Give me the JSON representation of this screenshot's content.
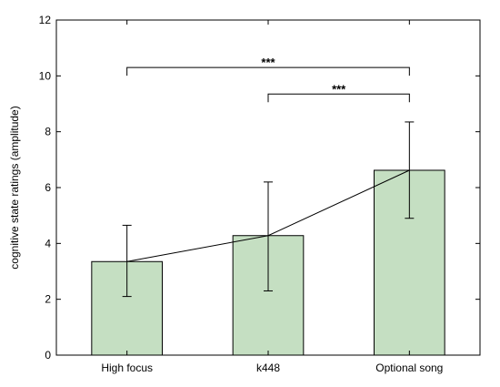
{
  "chart_data": {
    "type": "bar",
    "title": "",
    "xlabel": "",
    "ylabel": "cognitive state ratings (amplitude)",
    "categories": [
      "High focus",
      "k448",
      "Optional song"
    ],
    "values": [
      3.35,
      4.28,
      6.62
    ],
    "error_bars": [
      {
        "low": 2.1,
        "high": 4.65
      },
      {
        "low": 2.3,
        "high": 6.2
      },
      {
        "low": 4.9,
        "high": 8.35
      }
    ],
    "trend_line": true,
    "ylim": [
      0,
      12
    ],
    "yticks": [
      "0",
      "2",
      "4",
      "6",
      "8",
      "10",
      "12"
    ],
    "grid": false,
    "bar_color": "#c5dfc2",
    "bar_edge_color": "#000000",
    "significance": [
      {
        "from": 0,
        "to": 2,
        "level": 10.3,
        "label": "***"
      },
      {
        "from": 1,
        "to": 2,
        "level": 9.35,
        "label": "***"
      }
    ]
  }
}
